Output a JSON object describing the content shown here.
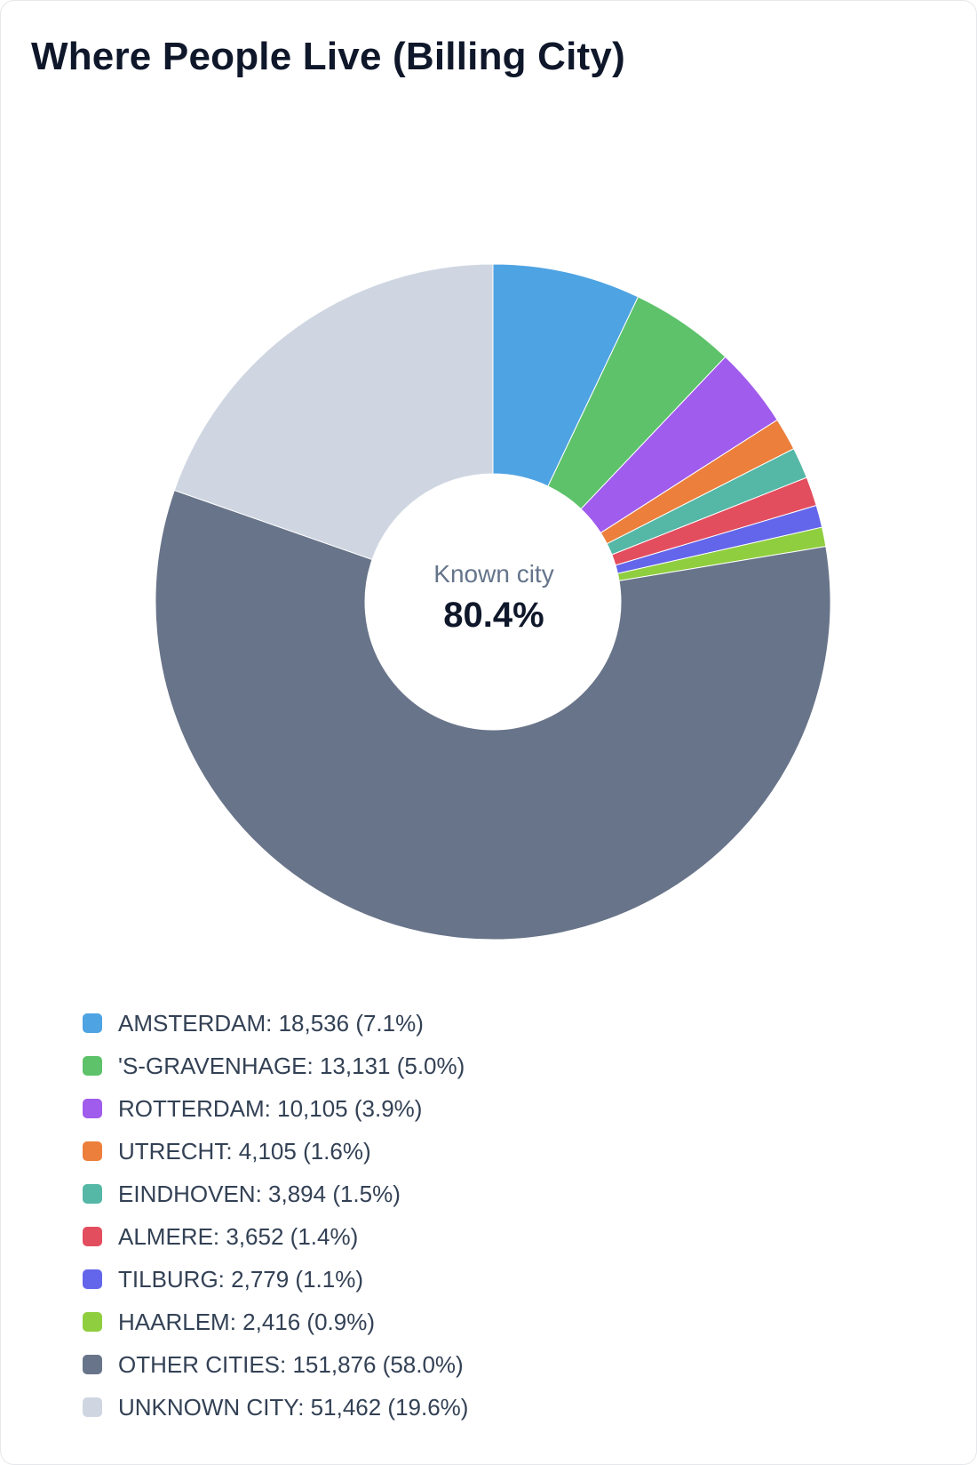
{
  "title": "Where People Live (Billing City)",
  "center": {
    "label": "Known city",
    "value": "80.4%"
  },
  "chart_data": {
    "type": "pie",
    "variant": "donut",
    "title": "Where People Live (Billing City)",
    "legend_position": "bottom",
    "slices": [
      {
        "label": "AMSTERDAM",
        "value": 18536,
        "percent": "7.1%",
        "color": "#4ea3e3"
      },
      {
        "label": "'S-GRAVENHAGE",
        "value": 13131,
        "percent": "5.0%",
        "color": "#5dc26a"
      },
      {
        "label": "ROTTERDAM",
        "value": 10105,
        "percent": "3.9%",
        "color": "#a05ced"
      },
      {
        "label": "UTRECHT",
        "value": 4105,
        "percent": "1.6%",
        "color": "#ec7f3b"
      },
      {
        "label": "EINDHOVEN",
        "value": 3894,
        "percent": "1.5%",
        "color": "#55b7a6"
      },
      {
        "label": "ALMERE",
        "value": 3652,
        "percent": "1.4%",
        "color": "#e34e5f"
      },
      {
        "label": "TILBURG",
        "value": 2779,
        "percent": "1.1%",
        "color": "#6366ea"
      },
      {
        "label": "HAARLEM",
        "value": 2416,
        "percent": "0.9%",
        "color": "#8fce3f"
      },
      {
        "label": "OTHER CITIES",
        "value": 151876,
        "percent": "58.0%",
        "color": "#687489"
      },
      {
        "label": "UNKNOWN CITY",
        "value": 51462,
        "percent": "19.6%",
        "color": "#cfd6e1"
      }
    ]
  }
}
